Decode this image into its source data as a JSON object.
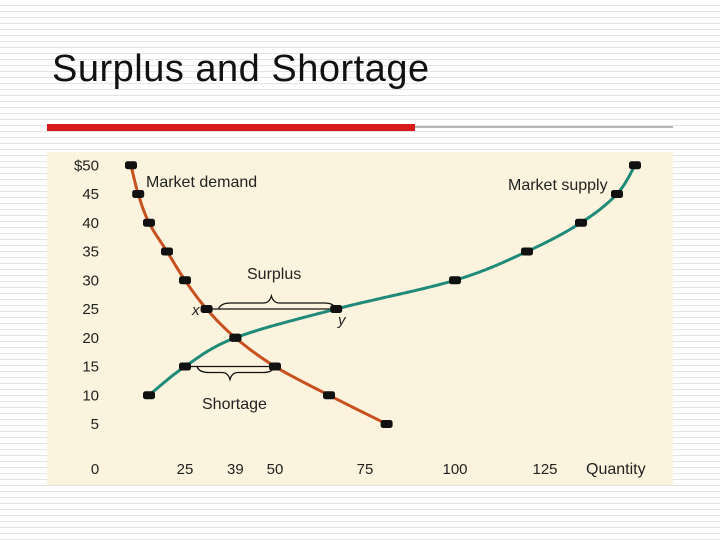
{
  "slide": {
    "title": "Surplus and Shortage",
    "accent_color": "#d91a1a",
    "panel_color": "#fbf3dd"
  },
  "chart_data": {
    "type": "line",
    "title": "",
    "xlabel": "Quantity",
    "ylabel": "",
    "xlim": [
      0,
      150
    ],
    "ylim": [
      0,
      50
    ],
    "grid": false,
    "x_ticks": [
      {
        "value": 0,
        "label": "0"
      },
      {
        "value": 25,
        "label": "25"
      },
      {
        "value": 39,
        "label": "39"
      },
      {
        "value": 50,
        "label": "50"
      },
      {
        "value": 75,
        "label": "75"
      },
      {
        "value": 100,
        "label": "100"
      },
      {
        "value": 125,
        "label": "125"
      }
    ],
    "y_ticks": [
      {
        "value": 50,
        "label": "$50"
      },
      {
        "value": 45,
        "label": "45"
      },
      {
        "value": 40,
        "label": "40"
      },
      {
        "value": 35,
        "label": "35"
      },
      {
        "value": 30,
        "label": "30"
      },
      {
        "value": 25,
        "label": "25"
      },
      {
        "value": 20,
        "label": "20"
      },
      {
        "value": 15,
        "label": "15"
      },
      {
        "value": 10,
        "label": "10"
      },
      {
        "value": 5,
        "label": "5"
      }
    ],
    "series": [
      {
        "name": "Market demand",
        "color": "#c8501e",
        "points": [
          [
            10,
            50
          ],
          [
            12,
            45
          ],
          [
            15,
            40
          ],
          [
            20,
            35
          ],
          [
            25,
            30
          ],
          [
            31,
            25
          ],
          [
            39,
            20
          ],
          [
            50,
            15
          ],
          [
            65,
            10
          ],
          [
            81,
            5
          ]
        ]
      },
      {
        "name": "Market supply",
        "color": "#1f8a7a",
        "points": [
          [
            15,
            10
          ],
          [
            25,
            15
          ],
          [
            39,
            20
          ],
          [
            67,
            25
          ],
          [
            100,
            30
          ],
          [
            120,
            35
          ],
          [
            135,
            40
          ],
          [
            145,
            45
          ],
          [
            150,
            50
          ]
        ]
      }
    ],
    "annotations": [
      {
        "text": "Surplus",
        "price": 25,
        "x_from": 31,
        "x_to": 67
      },
      {
        "text": "Shortage",
        "price": 15,
        "x_from": 25,
        "x_to": 50
      },
      {
        "text": "x"
      },
      {
        "text": "y"
      }
    ]
  }
}
